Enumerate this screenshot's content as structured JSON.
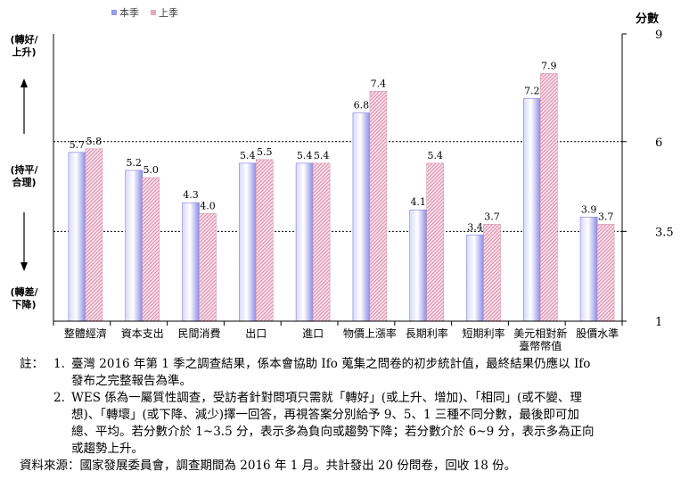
{
  "chart_data": {
    "type": "bar",
    "categories": [
      "整體經濟",
      "資本支出",
      "民間消費",
      "出口",
      "進口",
      "物價上漲率",
      "長期利率",
      "短期利率",
      "美元相對新臺幣幣值",
      "股價水準"
    ],
    "category_lines": [
      [
        "整體經濟"
      ],
      [
        "資本支出"
      ],
      [
        "民間消費"
      ],
      [
        "出口"
      ],
      [
        "進口"
      ],
      [
        "物價上漲率"
      ],
      [
        "長期利率"
      ],
      [
        "短期利率"
      ],
      [
        "美元相對新",
        "臺幣幣值"
      ],
      [
        "股價水準"
      ]
    ],
    "series": [
      {
        "name": "本季",
        "values": [
          5.7,
          5.2,
          4.3,
          5.4,
          5.4,
          6.8,
          4.1,
          3.4,
          7.2,
          3.9
        ],
        "color": "#9999ee"
      },
      {
        "name": "上季",
        "values": [
          5.8,
          5.0,
          4.0,
          5.5,
          5.4,
          7.4,
          5.4,
          3.7,
          7.9,
          3.7
        ],
        "color": "#e6a8c0"
      }
    ],
    "ylabel": "分數",
    "ylim": [
      1,
      9
    ],
    "yticks": [
      1,
      3.5,
      6,
      9
    ],
    "reference_lines": [
      3.5,
      6
    ],
    "legend_position": "top-left",
    "side_labels": [
      {
        "lines": [
          "(轉好/",
          "上升)"
        ]
      },
      {
        "lines": [
          "(持平/",
          "合理)"
        ]
      },
      {
        "lines": [
          "(轉差/",
          "下降)"
        ]
      }
    ]
  },
  "notes": {
    "prefix": "註：",
    "items": [
      {
        "num": "1.",
        "lines": [
          "臺灣 2016 年第 1 季之調查結果，係本會協助 Ifo 蒐集之問卷的初步統計值，最終結果仍應以 Ifo",
          "發布之完整報告為準。"
        ]
      },
      {
        "num": "2.",
        "lines": [
          "WES 係為一屬質性調查，受訪者針對問項只需就「轉好」(或上升、增加)、「相同」(或不變、理",
          "想)、「轉壞」(或下降、減少)擇一回答，再視答案分別給予 9、5、1 三種不同分數，最後即可加",
          "總、平均。若分數介於 1~3.5 分，表示多為負向或趨勢下降；若分數介於 6~9 分，表示多為正向",
          "或趨勢上升。"
        ]
      }
    ],
    "source": "資料來源：國家發展委員會，調查期間為 2016 年 1 月。共計發出 20 份問卷，回收 18 份。"
  }
}
